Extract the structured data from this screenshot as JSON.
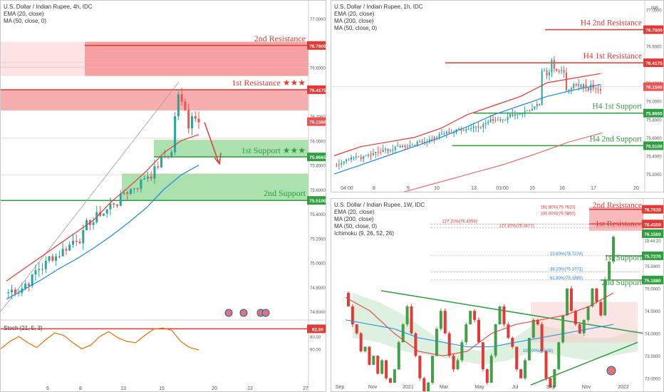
{
  "charts": {
    "left": {
      "legend": [
        "U.S. Dollar / Indian Rupee, 4h, IDC",
        "EMA (20, close)",
        "MA (50, close, 0)"
      ],
      "stoch_label": "Stoch (21, 5, 3)",
      "stoch_marker": "92.60",
      "stoch_ticks": [
        "80.00",
        "60.00"
      ],
      "x_ticks": [
        "6",
        "8",
        "13",
        "15",
        "20",
        "22",
        "27"
      ],
      "price_ticks": [
        "77.0000",
        "76.6000",
        "76.2000",
        "76.0000",
        "75.8000",
        "75.6000",
        "75.4000",
        "75.2000",
        "75.0000",
        "74.8000",
        "74.6000",
        "74.4000",
        "74.2000"
      ],
      "labels": [
        {
          "text": "2nd Resistance",
          "price": "76.7800",
          "color": "#e53935"
        },
        {
          "text": "1st Resistance ★★★",
          "price": "76.4175",
          "color": "#e53935"
        },
        {
          "text": "1st Support ★★★",
          "price": "75.8665",
          "color": "#2e9e3e"
        },
        {
          "text": "2nd Support",
          "price": "75.5100",
          "color": "#2e9e3e"
        }
      ],
      "last_price": "76.1560"
    },
    "top_right": {
      "legend": [
        "U.S. Dollar / Indian Rupee, 1h, IDC",
        "EMA (20, close)",
        "MA (200, close)",
        "MA (50, close, 0)"
      ],
      "currency": "INR",
      "x_ticks": [
        "04:00",
        "8",
        "9",
        "10",
        "13",
        "03:00",
        "15",
        "16",
        "17",
        "20"
      ],
      "price_ticks": [
        "77.0000",
        "76.6000",
        "76.2000",
        "76.0000",
        "75.8000",
        "75.6000",
        "75.4000",
        "75.2000"
      ],
      "top_tick": "77.0000",
      "labels": [
        {
          "text": "H4 2nd Resistance",
          "price": "76.7800",
          "color": "#e53935"
        },
        {
          "text": "H4 1st Resistance",
          "price": "76.4175",
          "color": "#e53935"
        },
        {
          "text": "H4 1st Support",
          "price": "75.8665",
          "color": "#2e9e3e"
        },
        {
          "text": "H4 2nd Support",
          "price": "75.5100",
          "color": "#2e9e3e"
        }
      ],
      "last_price": "76.1560"
    },
    "bottom_right": {
      "legend": [
        "U.S. Dollar / Indian Rupee, 1W, IDC",
        "EMA (20, close)",
        "MA (200, close)",
        "MA (50, close, 0)",
        "Ichimoku (9, 26, 52, 26)"
      ],
      "x_ticks": [
        "Sep",
        "Nov",
        "2021",
        "Mar",
        "May",
        "Jul",
        "Sep",
        "Nov",
        "2022"
      ],
      "price_ticks": [
        "76.5000",
        "75.5000",
        "75.0000",
        "74.5000",
        "74.0000",
        "73.5000",
        "73.0000"
      ],
      "labels": [
        {
          "text": "2nd Resistance",
          "price": "76.7620",
          "color": "#e53935"
        },
        {
          "text": "1st Resistance",
          "price": "76.4350",
          "color": "#e53935"
        },
        {
          "text": "1st Support",
          "price": "75.7270",
          "color": "#2e9e3e"
        },
        {
          "text": "2nd Support",
          "price": "75.1880",
          "color": "#2e9e3e"
        }
      ],
      "last_price": "76.1560",
      "countdown": "19:44:20",
      "fib_labels": [
        "161.80%(76.7620)",
        "100.00%(76.5850)",
        "127.20%(76.4358)",
        "127.20%(76.3477)",
        "23.60%(75.7274)",
        "38.20%(75.3701)",
        "61.80%(75.1880)",
        "100.00%(73.58)"
      ]
    }
  },
  "colors": {
    "resistance": "#e53935",
    "support": "#2e9e3e",
    "up_candle": "#26a69a",
    "down_candle": "#ef5350",
    "ema": "#e53935",
    "ma50": "#1e88e5",
    "ma200": "#ef5350",
    "ichimoku_cloud": "#c8e6c9"
  },
  "chart_data": [
    {
      "type": "line",
      "title": "U.S. Dollar / Indian Rupee, 4h, IDC",
      "ylim": [
        74.6,
        77.1
      ],
      "series": [
        {
          "name": "EMA (20, close)",
          "values": [
            74.85,
            74.95,
            75.05,
            75.15,
            75.25,
            75.35,
            75.5,
            75.62,
            75.75,
            75.9,
            76.0,
            76.05
          ]
        },
        {
          "name": "MA (50, close, 0)",
          "values": [
            74.7,
            74.78,
            74.86,
            74.95,
            75.03,
            75.12,
            75.22,
            75.33,
            75.45,
            75.6,
            75.72,
            75.8
          ]
        }
      ],
      "levels": [
        76.78,
        76.4175,
        75.8665,
        75.51
      ]
    },
    {
      "type": "line",
      "title": "U.S. Dollar / Indian Rupee, 1h, IDC",
      "ylim": [
        75.1,
        77.05
      ],
      "series": [
        {
          "name": "EMA (20, close)",
          "values": [
            75.4,
            75.5,
            75.55,
            75.6,
            75.7,
            75.85,
            75.95,
            76.05,
            76.2,
            76.25,
            76.3
          ]
        },
        {
          "name": "MA (50, close, 0)",
          "values": [
            75.2,
            75.3,
            75.4,
            75.5,
            75.6,
            75.72,
            75.85,
            75.95,
            76.05,
            76.12,
            76.18
          ]
        },
        {
          "name": "MA (200, close)",
          "values": [
            75.0,
            75.1,
            75.2,
            75.3,
            75.42,
            75.55,
            75.65
          ]
        }
      ],
      "levels": [
        76.78,
        76.4175,
        75.8665,
        75.51
      ]
    },
    {
      "type": "line",
      "title": "U.S. Dollar / Indian Rupee, 1W, IDC",
      "ylim": [
        72.9,
        76.9
      ],
      "series": [
        {
          "name": "EMA (20, close)",
          "values": [
            74.8,
            74.5,
            74.0,
            73.6,
            73.5,
            73.6,
            74.0,
            74.2,
            74.3,
            74.4,
            74.6,
            74.9
          ]
        },
        {
          "name": "MA (50, close, 0)",
          "values": [
            74.3,
            74.2,
            74.1,
            73.9,
            73.8,
            73.7,
            73.7,
            73.8,
            73.9,
            74.0,
            74.1,
            74.2
          ]
        }
      ],
      "levels": [
        76.762,
        76.435,
        75.727,
        75.188
      ]
    }
  ]
}
